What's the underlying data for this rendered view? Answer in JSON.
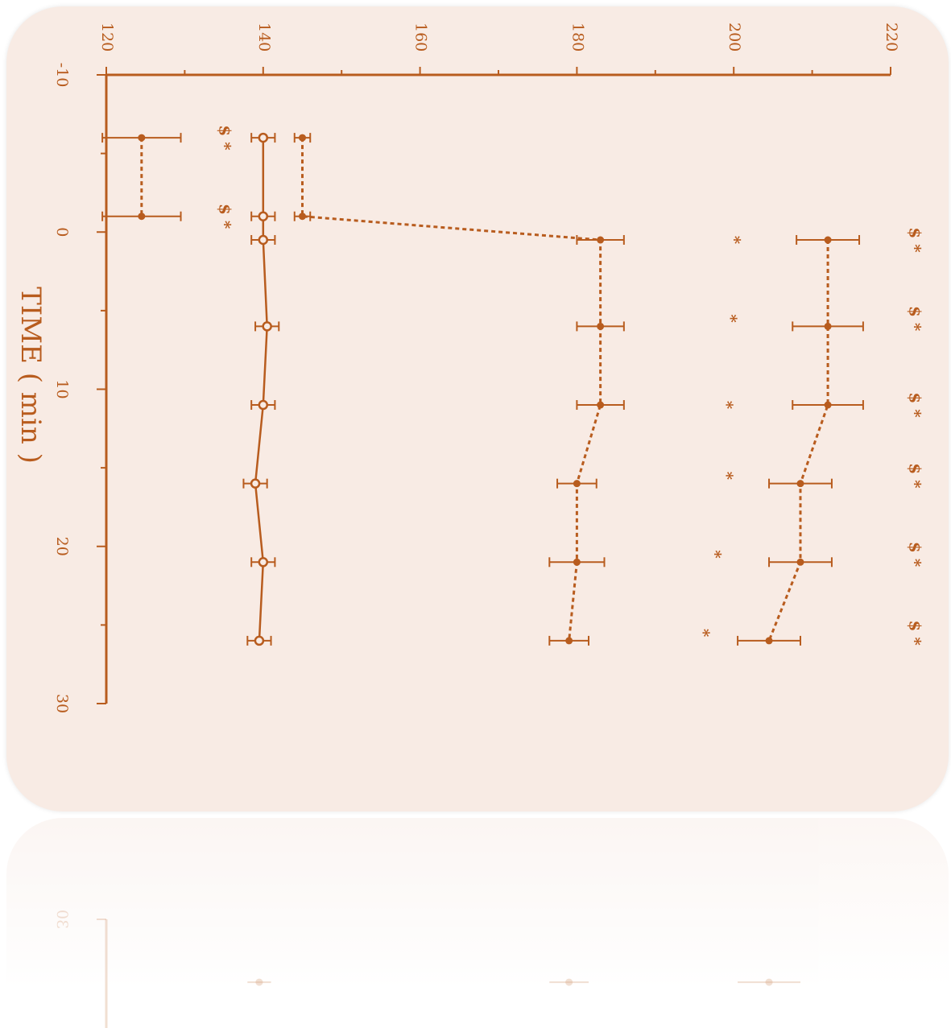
{
  "chart_data": {
    "type": "line",
    "orientation": "rotated 90 degrees clockwise",
    "xlabel": "TIME ( min )",
    "ylabel": "",
    "xlim": [
      -10,
      30
    ],
    "ylim": [
      120,
      220
    ],
    "x_ticks": [
      "-10",
      "0",
      "10",
      "20",
      "30"
    ],
    "y_ticks": [
      "120",
      "140",
      "160",
      "180",
      "200",
      "220"
    ],
    "grid": false,
    "color": "#b85c1e",
    "series": [
      {
        "marker": "open-circle",
        "line": "solid",
        "x": [
          -6,
          -1,
          0.5,
          6,
          11,
          16,
          21,
          26
        ],
        "y": [
          140,
          140,
          140,
          140.5,
          140,
          139,
          140,
          139.5
        ],
        "err": [
          1.5,
          1.5,
          1.5,
          1.5,
          1.5,
          1.5,
          1.5,
          1.5
        ]
      },
      {
        "marker": "filled-circle",
        "line": "dashed",
        "x": [
          -6,
          -1
        ],
        "y": [
          124.5,
          124.5
        ],
        "err": [
          5,
          5
        ]
      },
      {
        "marker": "filled-circle",
        "line": "dashed",
        "x": [
          -6,
          -1,
          0.5,
          6,
          11,
          16,
          21,
          26
        ],
        "y": [
          145,
          145,
          183,
          183,
          183,
          180,
          180,
          179
        ],
        "err": [
          1,
          1,
          3,
          3,
          3,
          2.5,
          3.5,
          2.5
        ]
      },
      {
        "marker": "filled-circle",
        "line": "dashed",
        "x": [
          0.5,
          6,
          11,
          16,
          21,
          26
        ],
        "y": [
          212,
          212,
          212,
          208.5,
          208.5,
          204.5
        ],
        "err": [
          4,
          4.5,
          4.5,
          4,
          4,
          4
        ]
      }
    ],
    "annotations": [
      {
        "x": -6,
        "y": 135,
        "text": "$ *"
      },
      {
        "x": -1,
        "y": 135,
        "text": "$ *"
      },
      {
        "x": 0.5,
        "y": 200,
        "text": "*"
      },
      {
        "x": 5.5,
        "y": 199.5,
        "text": "*"
      },
      {
        "x": 11,
        "y": 199,
        "text": "*"
      },
      {
        "x": 15.5,
        "y": 199,
        "text": "*"
      },
      {
        "x": 20.5,
        "y": 197.5,
        "text": "*"
      },
      {
        "x": 25.5,
        "y": 196,
        "text": "*"
      },
      {
        "x": 0.5,
        "y": 223,
        "text": "$ *"
      },
      {
        "x": 5.5,
        "y": 223,
        "text": "$ *"
      },
      {
        "x": 11,
        "y": 223,
        "text": "$ *"
      },
      {
        "x": 15.5,
        "y": 223,
        "text": "$ *"
      },
      {
        "x": 20.5,
        "y": 223,
        "text": "$ *"
      },
      {
        "x": 25.5,
        "y": 223,
        "text": "$ *"
      }
    ]
  }
}
